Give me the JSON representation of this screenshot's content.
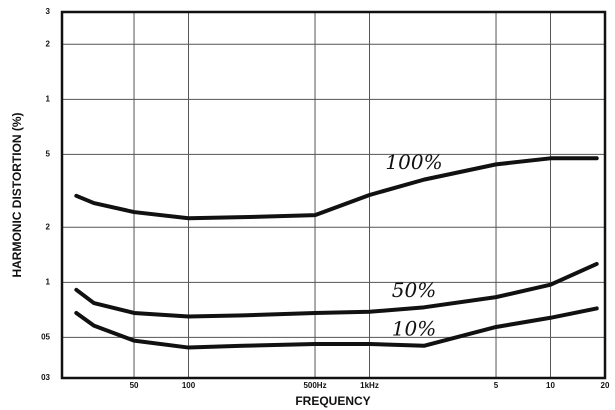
{
  "chart_data": {
    "type": "line",
    "ylabel": "HARMONIC DISTORTION (%)",
    "xlabel": "FREQUENCY",
    "x": [
      24,
      30,
      50,
      100,
      200,
      500,
      1000,
      2000,
      5000,
      10000,
      18000
    ],
    "series": [
      {
        "name": "100%",
        "color": "#111111",
        "values": [
          2.97,
          2.71,
          2.42,
          2.24,
          2.27,
          2.33,
          3.0,
          3.64,
          4.41,
          4.76,
          4.76
        ]
      },
      {
        "name": "50%",
        "color": "#111111",
        "values": [
          0.91,
          0.77,
          0.68,
          0.65,
          0.66,
          0.68,
          0.69,
          0.73,
          0.83,
          0.97,
          1.26
        ]
      },
      {
        "name": "10%",
        "color": "#111111",
        "values": [
          0.68,
          0.58,
          0.48,
          0.44,
          0.45,
          0.46,
          0.46,
          0.45,
          0.57,
          0.64,
          0.72
        ]
      }
    ],
    "xlim": [
      20,
      20000
    ],
    "xticks": [
      50,
      100,
      {
        "value": 500,
        "label": "500Hz"
      },
      {
        "value": 1000,
        "label": "1kHz"
      },
      {
        "value": 5000,
        "label": "5"
      },
      {
        "value": 10000,
        "label": "10"
      },
      {
        "value": 20000,
        "label": "20"
      }
    ],
    "ylim": [
      0.3,
      30
    ],
    "yticks": [
      {
        "value": 30,
        "label": "3"
      },
      {
        "value": 20,
        "label": "2"
      },
      {
        "value": 10,
        "label": "1"
      },
      5,
      2,
      1,
      {
        "value": 0.5,
        "label": "05"
      },
      {
        "value": 0.3,
        "label": "03"
      }
    ],
    "xscale": "log",
    "yscale": "log",
    "grid": true
  }
}
